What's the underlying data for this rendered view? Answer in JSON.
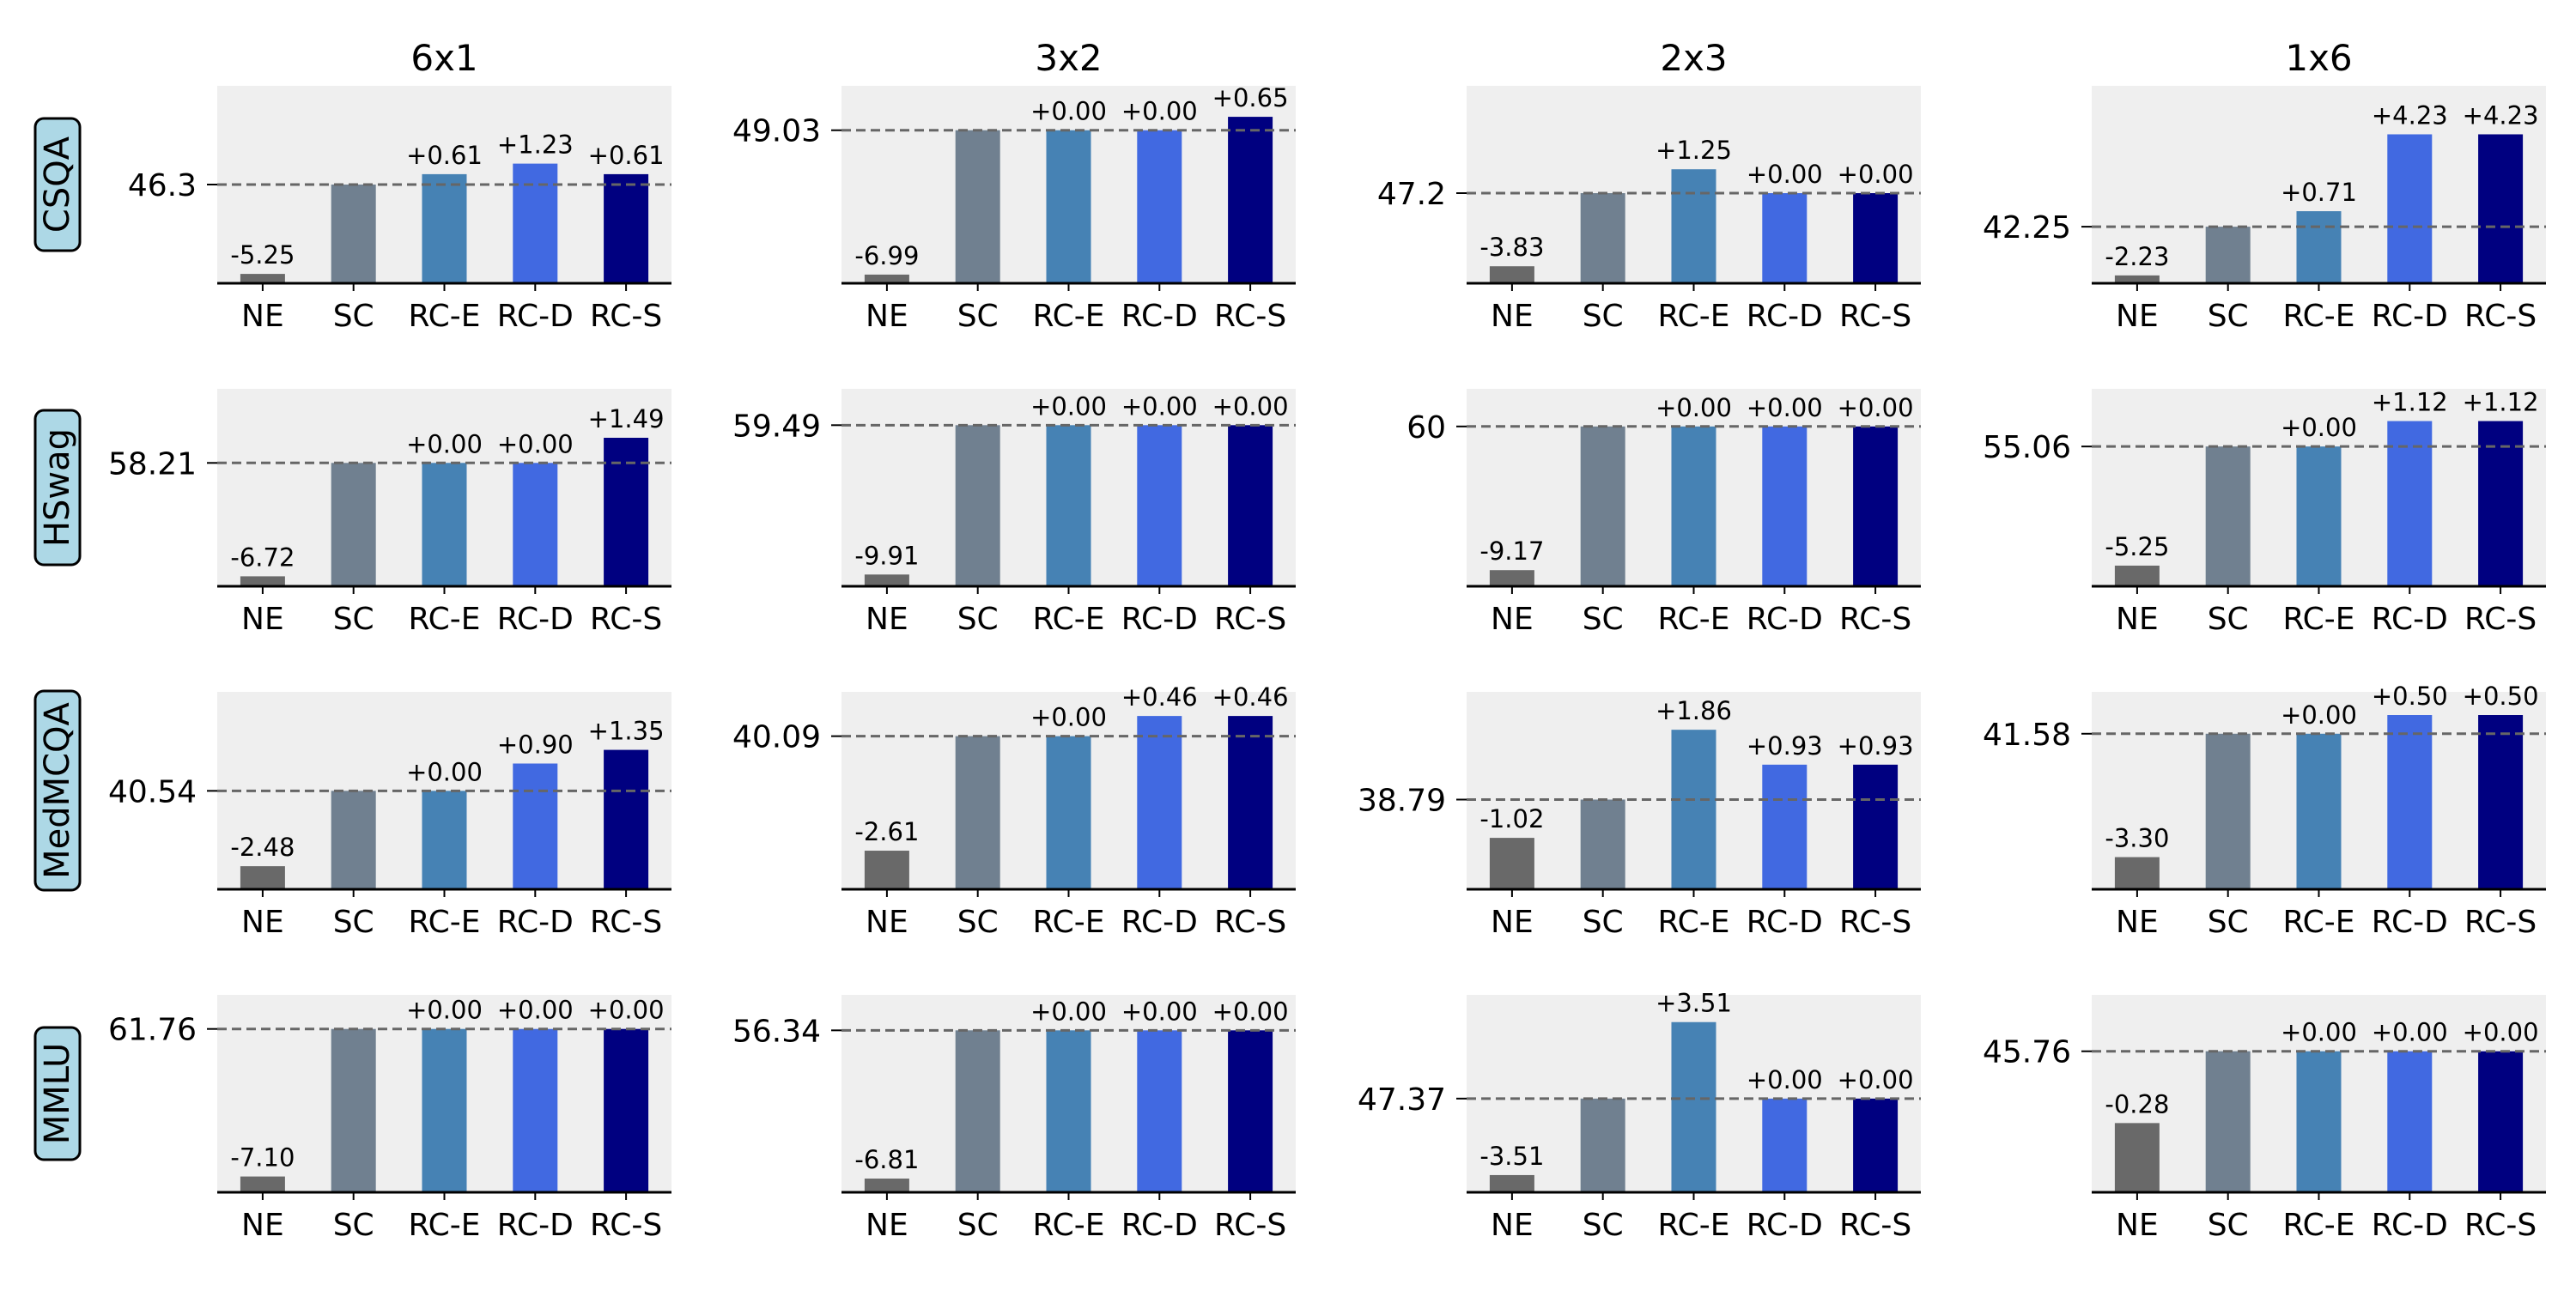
{
  "chart_data": {
    "type": "bar",
    "title": "",
    "columns": [
      "6x1",
      "3x2",
      "2x3",
      "1x6"
    ],
    "rows": [
      "CSQA",
      "HSwag",
      "MedMCQA",
      "MMLU"
    ],
    "categories": [
      "NE",
      "SC",
      "RC-E",
      "RC-D",
      "RC-S"
    ],
    "colors": {
      "NE": "#696969",
      "SC": "#708090",
      "RC-E": "#4682b4",
      "RC-D": "#4169e1",
      "RC-S": "#000080",
      "panel_bg": "#efefef",
      "row_label_bg": "#add8e6",
      "baseline": "#666666"
    },
    "panels": [
      {
        "row": "CSQA",
        "column": "6x1",
        "baseline": 46.3,
        "ylim": [
          40.5,
          52.1
        ],
        "deltas": [
          -5.25,
          0,
          0.61,
          1.23,
          0.61
        ],
        "labels": [
          "-5.25",
          "",
          "+0.61",
          "+1.23",
          "+0.61"
        ]
      },
      {
        "row": "CSQA",
        "column": "3x2",
        "baseline": 49.03,
        "ylim": [
          41.62,
          51.18
        ],
        "deltas": [
          -6.99,
          0,
          0.0,
          0.0,
          0.65
        ],
        "labels": [
          "-6.99",
          "",
          "+0.00",
          "+0.00",
          "+0.65"
        ]
      },
      {
        "row": "CSQA",
        "column": "2x3",
        "baseline": 47.2,
        "ylim": [
          42.48,
          52.82
        ],
        "deltas": [
          -3.83,
          0,
          1.25,
          0.0,
          0.0
        ],
        "labels": [
          "-3.83",
          "",
          "+1.25",
          "+0.00",
          "+0.00"
        ]
      },
      {
        "row": "CSQA",
        "column": "1x6",
        "baseline": 42.25,
        "ylim": [
          39.66,
          48.7
        ],
        "deltas": [
          -2.23,
          0,
          0.71,
          4.23,
          4.23
        ],
        "labels": [
          "-2.23",
          "",
          "+0.71",
          "+4.23",
          "+4.23"
        ]
      },
      {
        "row": "HSwag",
        "column": "6x1",
        "baseline": 58.21,
        "ylim": [
          50.9,
          62.6
        ],
        "deltas": [
          -6.72,
          0,
          0.0,
          0.0,
          1.49
        ],
        "labels": [
          "-6.72",
          "",
          "+0.00",
          "+0.00",
          "+1.49"
        ]
      },
      {
        "row": "HSwag",
        "column": "3x2",
        "baseline": 59.49,
        "ylim": [
          48.8,
          61.9
        ],
        "deltas": [
          -9.91,
          0,
          0.0,
          0.0,
          0.0
        ],
        "labels": [
          "-9.91",
          "",
          "+0.00",
          "+0.00",
          "+0.00"
        ]
      },
      {
        "row": "HSwag",
        "column": "2x3",
        "baseline": 60.0,
        "ylim": [
          49.8,
          62.4
        ],
        "deltas": [
          -9.17,
          0,
          0.0,
          0.0,
          0.0
        ],
        "labels": [
          "-9.17",
          "",
          "+0.00",
          "+0.00",
          "+0.00"
        ]
      },
      {
        "row": "HSwag",
        "column": "1x6",
        "baseline": 55.06,
        "ylim": [
          48.9,
          57.6
        ],
        "deltas": [
          -5.25,
          0,
          0.0,
          1.12,
          1.12
        ],
        "labels": [
          "-5.25",
          "",
          "+0.00",
          "+1.12",
          "+1.12"
        ]
      },
      {
        "row": "MedMCQA",
        "column": "6x1",
        "baseline": 40.54,
        "ylim": [
          37.3,
          43.8
        ],
        "deltas": [
          -2.48,
          0,
          0.0,
          0.9,
          1.35
        ],
        "labels": [
          "-2.48",
          "",
          "+0.00",
          "+0.90",
          "+1.35"
        ]
      },
      {
        "row": "MedMCQA",
        "column": "3x2",
        "baseline": 40.09,
        "ylim": [
          36.6,
          41.1
        ],
        "deltas": [
          -2.61,
          0,
          0.0,
          0.46,
          0.46
        ],
        "labels": [
          "-2.61",
          "",
          "+0.00",
          "+0.46",
          "+0.46"
        ]
      },
      {
        "row": "MedMCQA",
        "column": "2x3",
        "baseline": 38.79,
        "ylim": [
          36.4,
          41.66
        ],
        "deltas": [
          -1.02,
          0,
          1.86,
          0.93,
          0.93
        ],
        "labels": [
          "-1.02",
          "",
          "+1.86",
          "+0.93",
          "+0.93"
        ]
      },
      {
        "row": "MedMCQA",
        "column": "1x6",
        "baseline": 41.58,
        "ylim": [
          37.42,
          42.7
        ],
        "deltas": [
          -3.3,
          0,
          0.0,
          0.5,
          0.5
        ],
        "labels": [
          "-3.30",
          "",
          "+0.00",
          "+0.50",
          "+0.50"
        ]
      },
      {
        "row": "MMLU",
        "column": "6x1",
        "baseline": 61.76,
        "ylim": [
          53.9,
          63.4
        ],
        "deltas": [
          -7.1,
          0,
          0.0,
          0.0,
          0.0
        ],
        "labels": [
          "-7.10",
          "",
          "+0.00",
          "+0.00",
          "+0.00"
        ]
      },
      {
        "row": "MMLU",
        "column": "3x2",
        "baseline": 56.34,
        "ylim": [
          48.9,
          57.97
        ],
        "deltas": [
          -6.81,
          0,
          0.0,
          0.0,
          0.0
        ],
        "labels": [
          "-6.81",
          "",
          "+0.00",
          "+0.00",
          "+0.00"
        ]
      },
      {
        "row": "MMLU",
        "column": "2x3",
        "baseline": 47.37,
        "ylim": [
          43.07,
          52.13
        ],
        "deltas": [
          -3.51,
          0,
          3.51,
          0.0,
          0.0
        ],
        "labels": [
          "-3.51",
          "",
          "+3.51",
          "+0.00",
          "+0.00"
        ]
      },
      {
        "row": "MMLU",
        "column": "1x6",
        "baseline": 45.76,
        "ylim": [
          45.21,
          45.98
        ],
        "deltas": [
          -0.28,
          0,
          0.0,
          0.0,
          0.0
        ],
        "labels": [
          "-0.28",
          "",
          "+0.00",
          "+0.00",
          "+0.00"
        ]
      }
    ]
  }
}
